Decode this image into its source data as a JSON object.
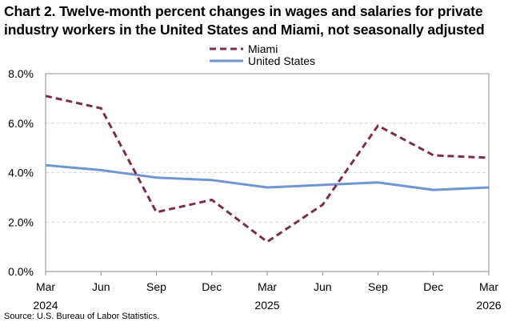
{
  "title_line1": "Chart 2. Twelve-month percent changes in wages and salaries for private",
  "title_line2": "industry workers in the United States and Miami, not seasonally adjusted",
  "source": "Source: U.S. Bureau of Labor Statistics.",
  "colors": {
    "miami": "#7b2d4a",
    "us": "#6f96d0",
    "grid": "#d9d9d9",
    "axis": "#8c8c8c"
  },
  "chart_data": {
    "type": "line",
    "title": "Chart 2. Twelve-month percent changes in wages and salaries for private industry workers in the United States and Miami, not seasonally adjusted",
    "xlabel": "",
    "ylabel": "",
    "ylim": [
      0,
      8
    ],
    "yticks": [
      "0.0%",
      "2.0%",
      "4.0%",
      "6.0%",
      "8.0%"
    ],
    "ytick_values": [
      0,
      2,
      4,
      6,
      8
    ],
    "grid": true,
    "legend_position": "top-center",
    "categories": [
      "Mar 2024",
      "Jun",
      "Sep",
      "Dec",
      "Mar 2025",
      "Jun",
      "Sep",
      "Dec",
      "Mar 2026"
    ],
    "x_tick_month": [
      "Mar",
      "Jun",
      "Sep",
      "Dec",
      "Mar",
      "Jun",
      "Sep",
      "Dec",
      "Mar"
    ],
    "x_tick_year": [
      "2024",
      "",
      "",
      "",
      "2025",
      "",
      "",
      "",
      "2026"
    ],
    "series": [
      {
        "name": "Miami",
        "style": "dashed",
        "values": [
          7.1,
          6.6,
          2.4,
          2.9,
          1.2,
          2.7,
          5.9,
          4.7,
          4.6
        ]
      },
      {
        "name": "United States",
        "style": "solid",
        "values": [
          4.3,
          4.1,
          3.8,
          3.7,
          3.4,
          3.5,
          3.6,
          3.3,
          3.4
        ]
      }
    ]
  }
}
